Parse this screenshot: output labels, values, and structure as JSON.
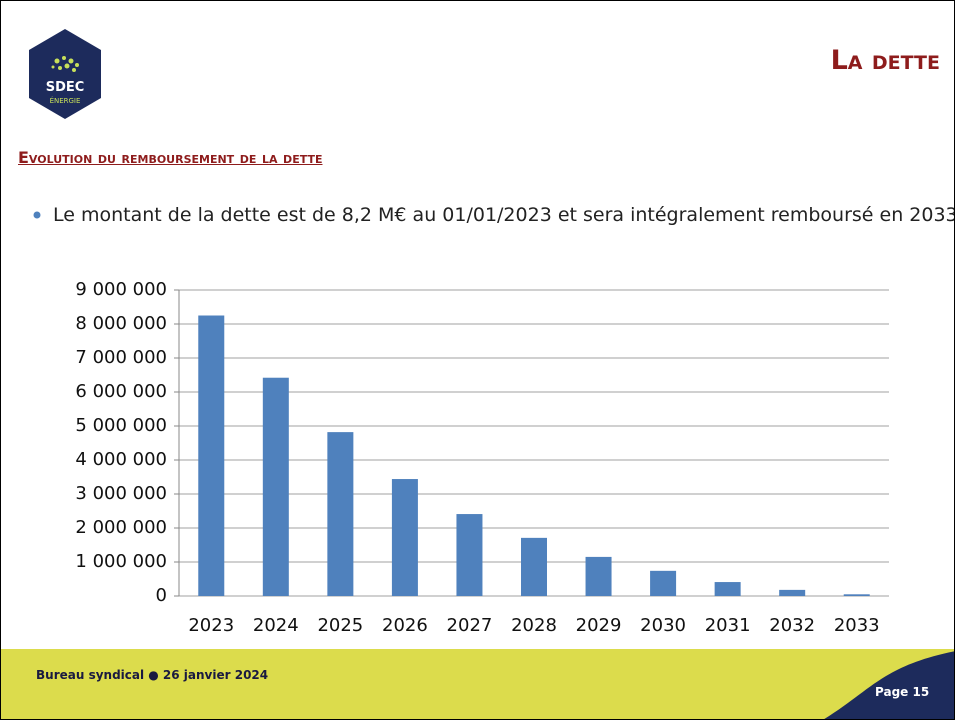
{
  "logo": {
    "line1": "SDEC",
    "line2": "ÉNERGIE"
  },
  "header": {
    "title": "La dette"
  },
  "section": {
    "title": "Evolution du remboursement de la dette"
  },
  "bullets": [
    "Le montant de la dette est de 8,2 M€ au 01/01/2023 et sera intégralement remboursé en 2033."
  ],
  "chart_data": {
    "type": "bar",
    "categories": [
      "2023",
      "2024",
      "2025",
      "2026",
      "2027",
      "2028",
      "2029",
      "2030",
      "2031",
      "2032",
      "2033"
    ],
    "values": [
      8250000,
      6420000,
      4820000,
      3440000,
      2410000,
      1710000,
      1150000,
      740000,
      410000,
      180000,
      50000
    ],
    "color": "#4f81bd",
    "ylim": [
      0,
      9000000
    ],
    "yticks": [
      0,
      {
        "value": 1000000,
        "label": "1 000 000"
      },
      {
        "value": 2000000,
        "label": "2 000 000"
      },
      {
        "value": 3000000,
        "label": "3 000 000"
      },
      {
        "value": 4000000,
        "label": "4 000 000"
      },
      {
        "value": 5000000,
        "label": "5 000 000"
      },
      {
        "value": 6000000,
        "label": "6 000 000"
      },
      {
        "value": 7000000,
        "label": "7 000 000"
      },
      {
        "value": 8000000,
        "label": "8 000 000"
      },
      {
        "value": 9000000,
        "label": "9 000 000"
      }
    ],
    "grid": true
  },
  "footer": {
    "left": "Bureau syndical ● 26 janvier 2024",
    "page": "Page 15"
  }
}
